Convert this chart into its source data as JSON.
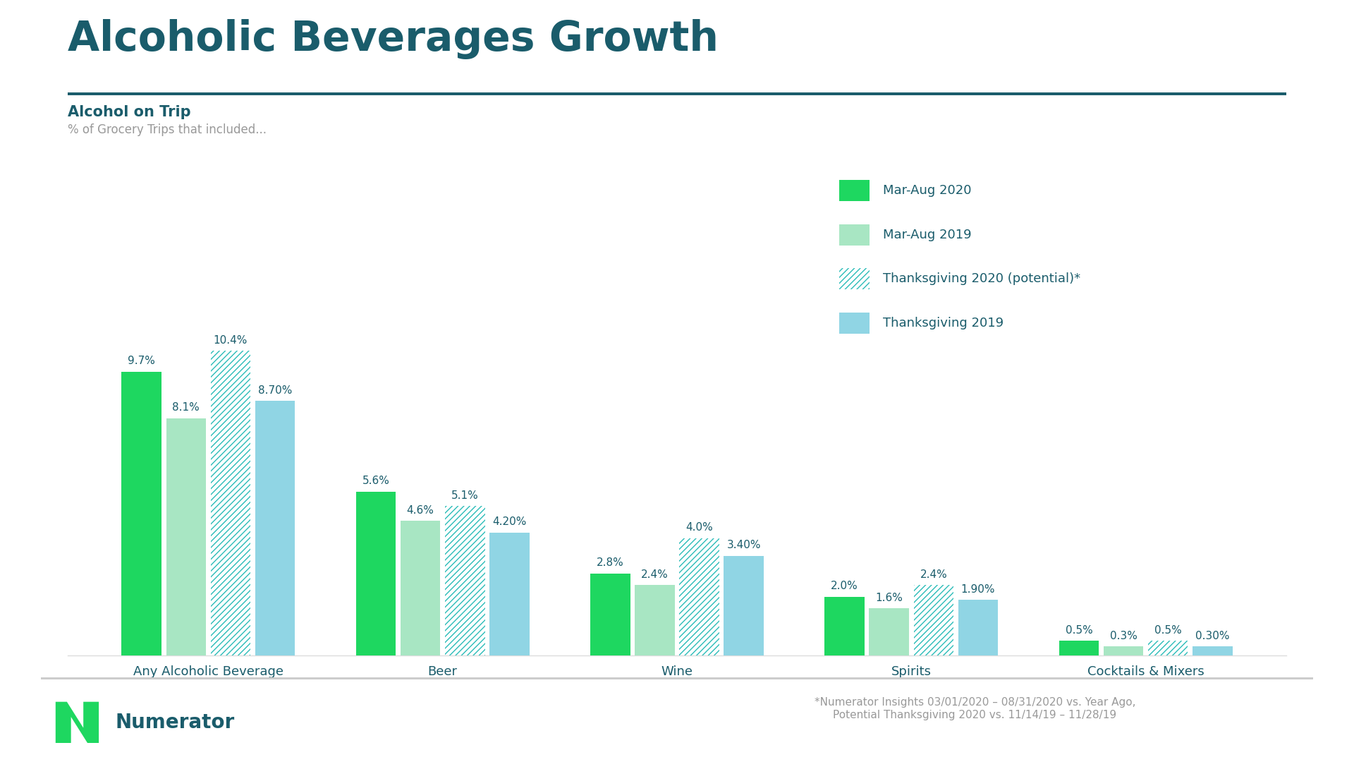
{
  "title": "Alcoholic Beverages Growth",
  "subtitle": "Alcohol on Trip",
  "subtitle2": "% of Grocery Trips that included...",
  "categories": [
    "Any Alcoholic Beverage",
    "Beer",
    "Wine",
    "Spirits",
    "Cocktails & Mixers"
  ],
  "series": {
    "mar_aug_2020": [
      9.7,
      5.6,
      2.8,
      2.0,
      0.5
    ],
    "mar_aug_2019": [
      8.1,
      4.6,
      2.4,
      1.6,
      0.3
    ],
    "thanksgiving_2020": [
      10.4,
      5.1,
      4.0,
      2.4,
      0.5
    ],
    "thanksgiving_2019": [
      8.7,
      4.2,
      3.4,
      1.9,
      0.3
    ]
  },
  "labels": {
    "mar_aug_2020": [
      "9.7%",
      "5.6%",
      "2.8%",
      "2.0%",
      "0.5%"
    ],
    "mar_aug_2019": [
      "8.1%",
      "4.6%",
      "2.4%",
      "1.6%",
      "0.3%"
    ],
    "thanksgiving_2020": [
      "10.4%",
      "5.1%",
      "4.0%",
      "2.4%",
      "0.5%"
    ],
    "thanksgiving_2019": [
      "8.70%",
      "4.20%",
      "3.40%",
      "1.90%",
      "0.30%"
    ]
  },
  "colors": {
    "mar_aug_2020": "#1ED760",
    "mar_aug_2019": "#A8E6C3",
    "thanksgiving_2020": "#2ABCB8",
    "thanksgiving_2019": "#90D5E4"
  },
  "legend_labels": [
    "Mar-Aug 2020",
    "Mar-Aug 2019",
    "Thanksgiving 2020 (potential)*",
    "Thanksgiving 2019"
  ],
  "title_color": "#1A5C6B",
  "subtitle_color": "#1A5C6B",
  "subtitle2_color": "#999999",
  "tick_label_color": "#1A5C6B",
  "bar_label_color": "#1A5C6B",
  "divider_color": "#1A5C6B",
  "footer_divider_color": "#CCCCCC",
  "footer_text_color": "#999999",
  "footer_text": "*Numerator Insights 03/01/2020 – 08/31/2020 vs. Year Ago,\nPotential Thanksgiving 2020 vs. 11/14/19 – 11/28/19",
  "numerator_text_color": "#1A5C6B",
  "background_color": "#FFFFFF",
  "ylim": [
    0,
    12.5
  ],
  "bar_width": 0.17,
  "bar_gap": 0.02
}
